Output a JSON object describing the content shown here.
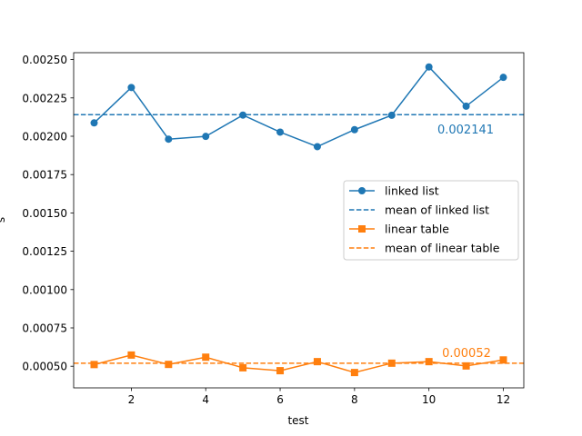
{
  "chart_data": {
    "type": "line",
    "title": "",
    "xlabel": "test",
    "ylabel": "s",
    "xlim": [
      0.45,
      12.55
    ],
    "ylim": [
      0.000359,
      0.002545
    ],
    "xticks": [
      2,
      4,
      6,
      8,
      10,
      12
    ],
    "xtick_labels": [
      "2",
      "4",
      "6",
      "8",
      "10",
      "12"
    ],
    "yticks": [
      0.0005,
      0.00075,
      0.001,
      0.00125,
      0.0015,
      0.00175,
      0.002,
      0.00225,
      0.0025
    ],
    "ytick_labels": [
      "0.00050",
      "0.00075",
      "0.00100",
      "0.00125",
      "0.00150",
      "0.00175",
      "0.00200",
      "0.00225",
      "0.00250"
    ],
    "grid": false,
    "legend_position": "center-right",
    "x": [
      1,
      2,
      3,
      4,
      5,
      6,
      7,
      8,
      9,
      10,
      11,
      12
    ],
    "series": [
      {
        "name": "linked list",
        "color": "#1f77b4",
        "marker": "circle",
        "values": [
          0.002087,
          0.002318,
          0.001981,
          0.001999,
          0.002138,
          0.002027,
          0.001932,
          0.002043,
          0.002137,
          0.002452,
          0.002196,
          0.002384
        ]
      },
      {
        "name": "linear table",
        "color": "#ff7f0e",
        "marker": "square",
        "values": [
          0.000511,
          0.000573,
          0.000512,
          0.000559,
          0.00049,
          0.000471,
          0.00053,
          0.000459,
          0.00052,
          0.00053,
          0.000502,
          0.000541
        ]
      }
    ],
    "mean_lines": [
      {
        "name": "mean of linked list",
        "color": "#1f77b4",
        "value": 0.002141,
        "label": "0.002141"
      },
      {
        "name": "mean of linear table",
        "color": "#ff7f0e",
        "value": 0.00052,
        "label": "0.00052"
      }
    ]
  }
}
